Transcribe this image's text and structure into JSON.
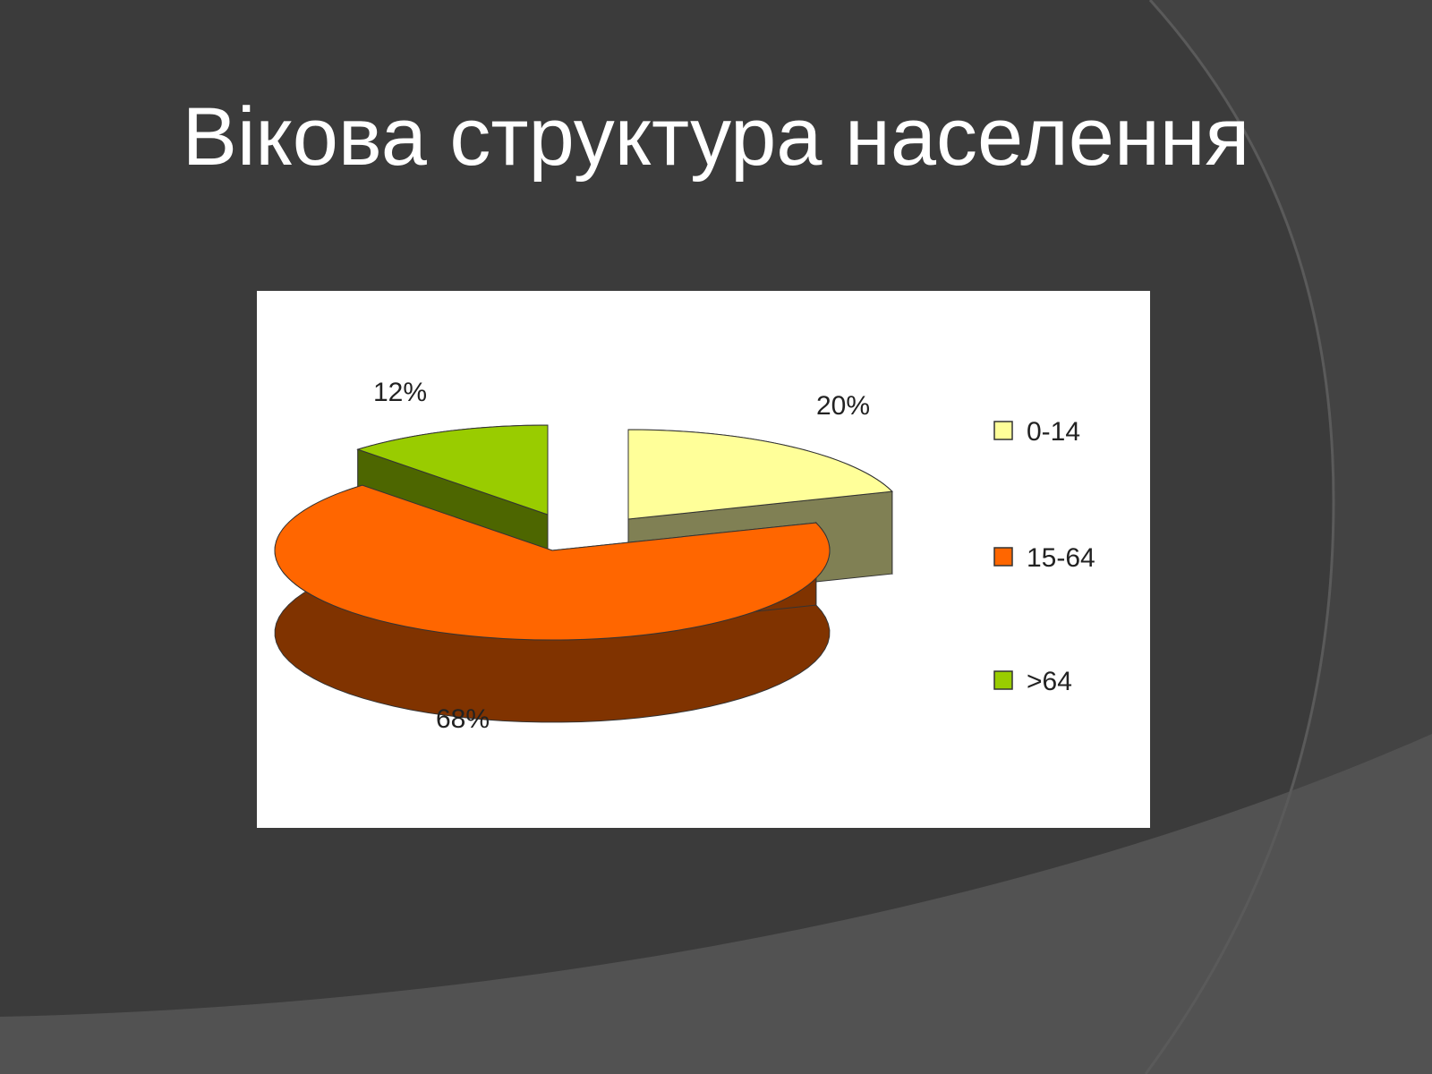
{
  "slide": {
    "title": "Вікова структура населення",
    "background_color": "#3b3b3b",
    "title_color": "#ffffff"
  },
  "chart_data": {
    "type": "pie",
    "title": "",
    "three_d": true,
    "exploded": true,
    "legend_position": "right",
    "slices": [
      {
        "name": "0-14",
        "value": 20,
        "label": "20%",
        "color": "#ffff99",
        "side_color": "#808054"
      },
      {
        "name": "15-64",
        "value": 68,
        "label": "68%",
        "color": "#ff6600",
        "side_color": "#803300"
      },
      {
        "name": ">64",
        "value": 12,
        "label": "12%",
        "color": "#99cc00",
        "side_color": "#4d6600"
      }
    ]
  }
}
